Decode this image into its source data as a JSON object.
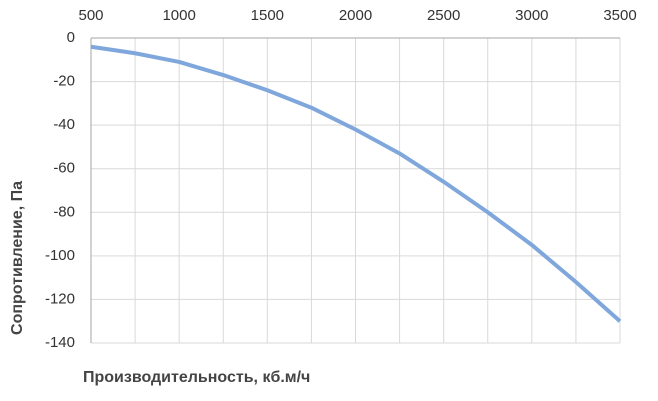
{
  "chart_data": {
    "type": "line",
    "x_label": "Производительность, кб.м/ч",
    "y_label": "Сопротивление, Па",
    "x": [
      500,
      750,
      1000,
      1250,
      1500,
      1750,
      2000,
      2250,
      2500,
      2750,
      3000,
      3250,
      3500
    ],
    "series": [
      {
        "color": "#7fa7dc",
        "values": [
          -4,
          -7,
          -11,
          -17,
          -24,
          -32,
          -42,
          -53,
          -66,
          -80,
          -95,
          -112,
          -130
        ]
      }
    ],
    "xlim": [
      500,
      3500
    ],
    "xticks": [
      500,
      1000,
      1500,
      2000,
      2500,
      3000,
      3500
    ],
    "x_minor_grid": [
      750,
      1250,
      1750,
      2250,
      2750,
      3250
    ],
    "ylim": [
      -140,
      0
    ],
    "yticks": [
      0,
      -20,
      -40,
      -60,
      -80,
      -100,
      -120,
      -140
    ],
    "x_axis_position": "top",
    "grid": true
  }
}
